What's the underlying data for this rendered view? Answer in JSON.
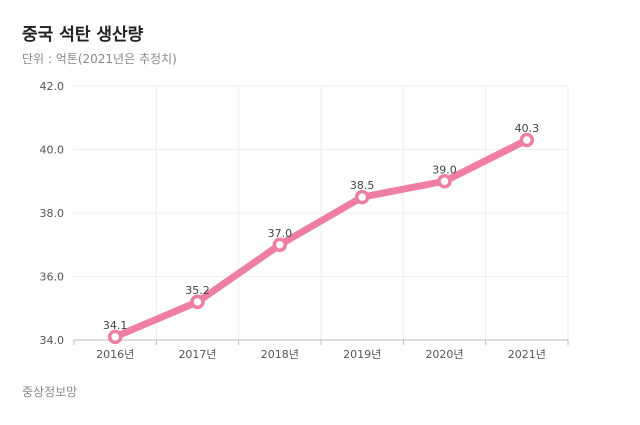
{
  "header": {
    "title": "중국 석탄 생산량",
    "subtitle": "단위 : 억톤(2021년은 추정치)"
  },
  "footer": {
    "source": "중상정보망"
  },
  "chart_data": {
    "type": "line",
    "categories": [
      "2016년",
      "2017년",
      "2018년",
      "2019년",
      "2020년",
      "2021년"
    ],
    "values": [
      34.1,
      35.2,
      37.0,
      38.5,
      39.0,
      40.3
    ],
    "value_labels": [
      "34.1",
      "35.2",
      "37.0",
      "38.5",
      "39.0",
      "40.3"
    ],
    "yticks": [
      "34.0",
      "36.0",
      "38.0",
      "40.0",
      "42.0"
    ],
    "ylim": [
      34.0,
      42.0
    ],
    "grid": true,
    "legend": "none",
    "colors": {
      "line": "#ee7ea2",
      "marker_fill": "#ffffff",
      "grid": "#eeeeee",
      "axis": "#bbbbbb"
    }
  }
}
